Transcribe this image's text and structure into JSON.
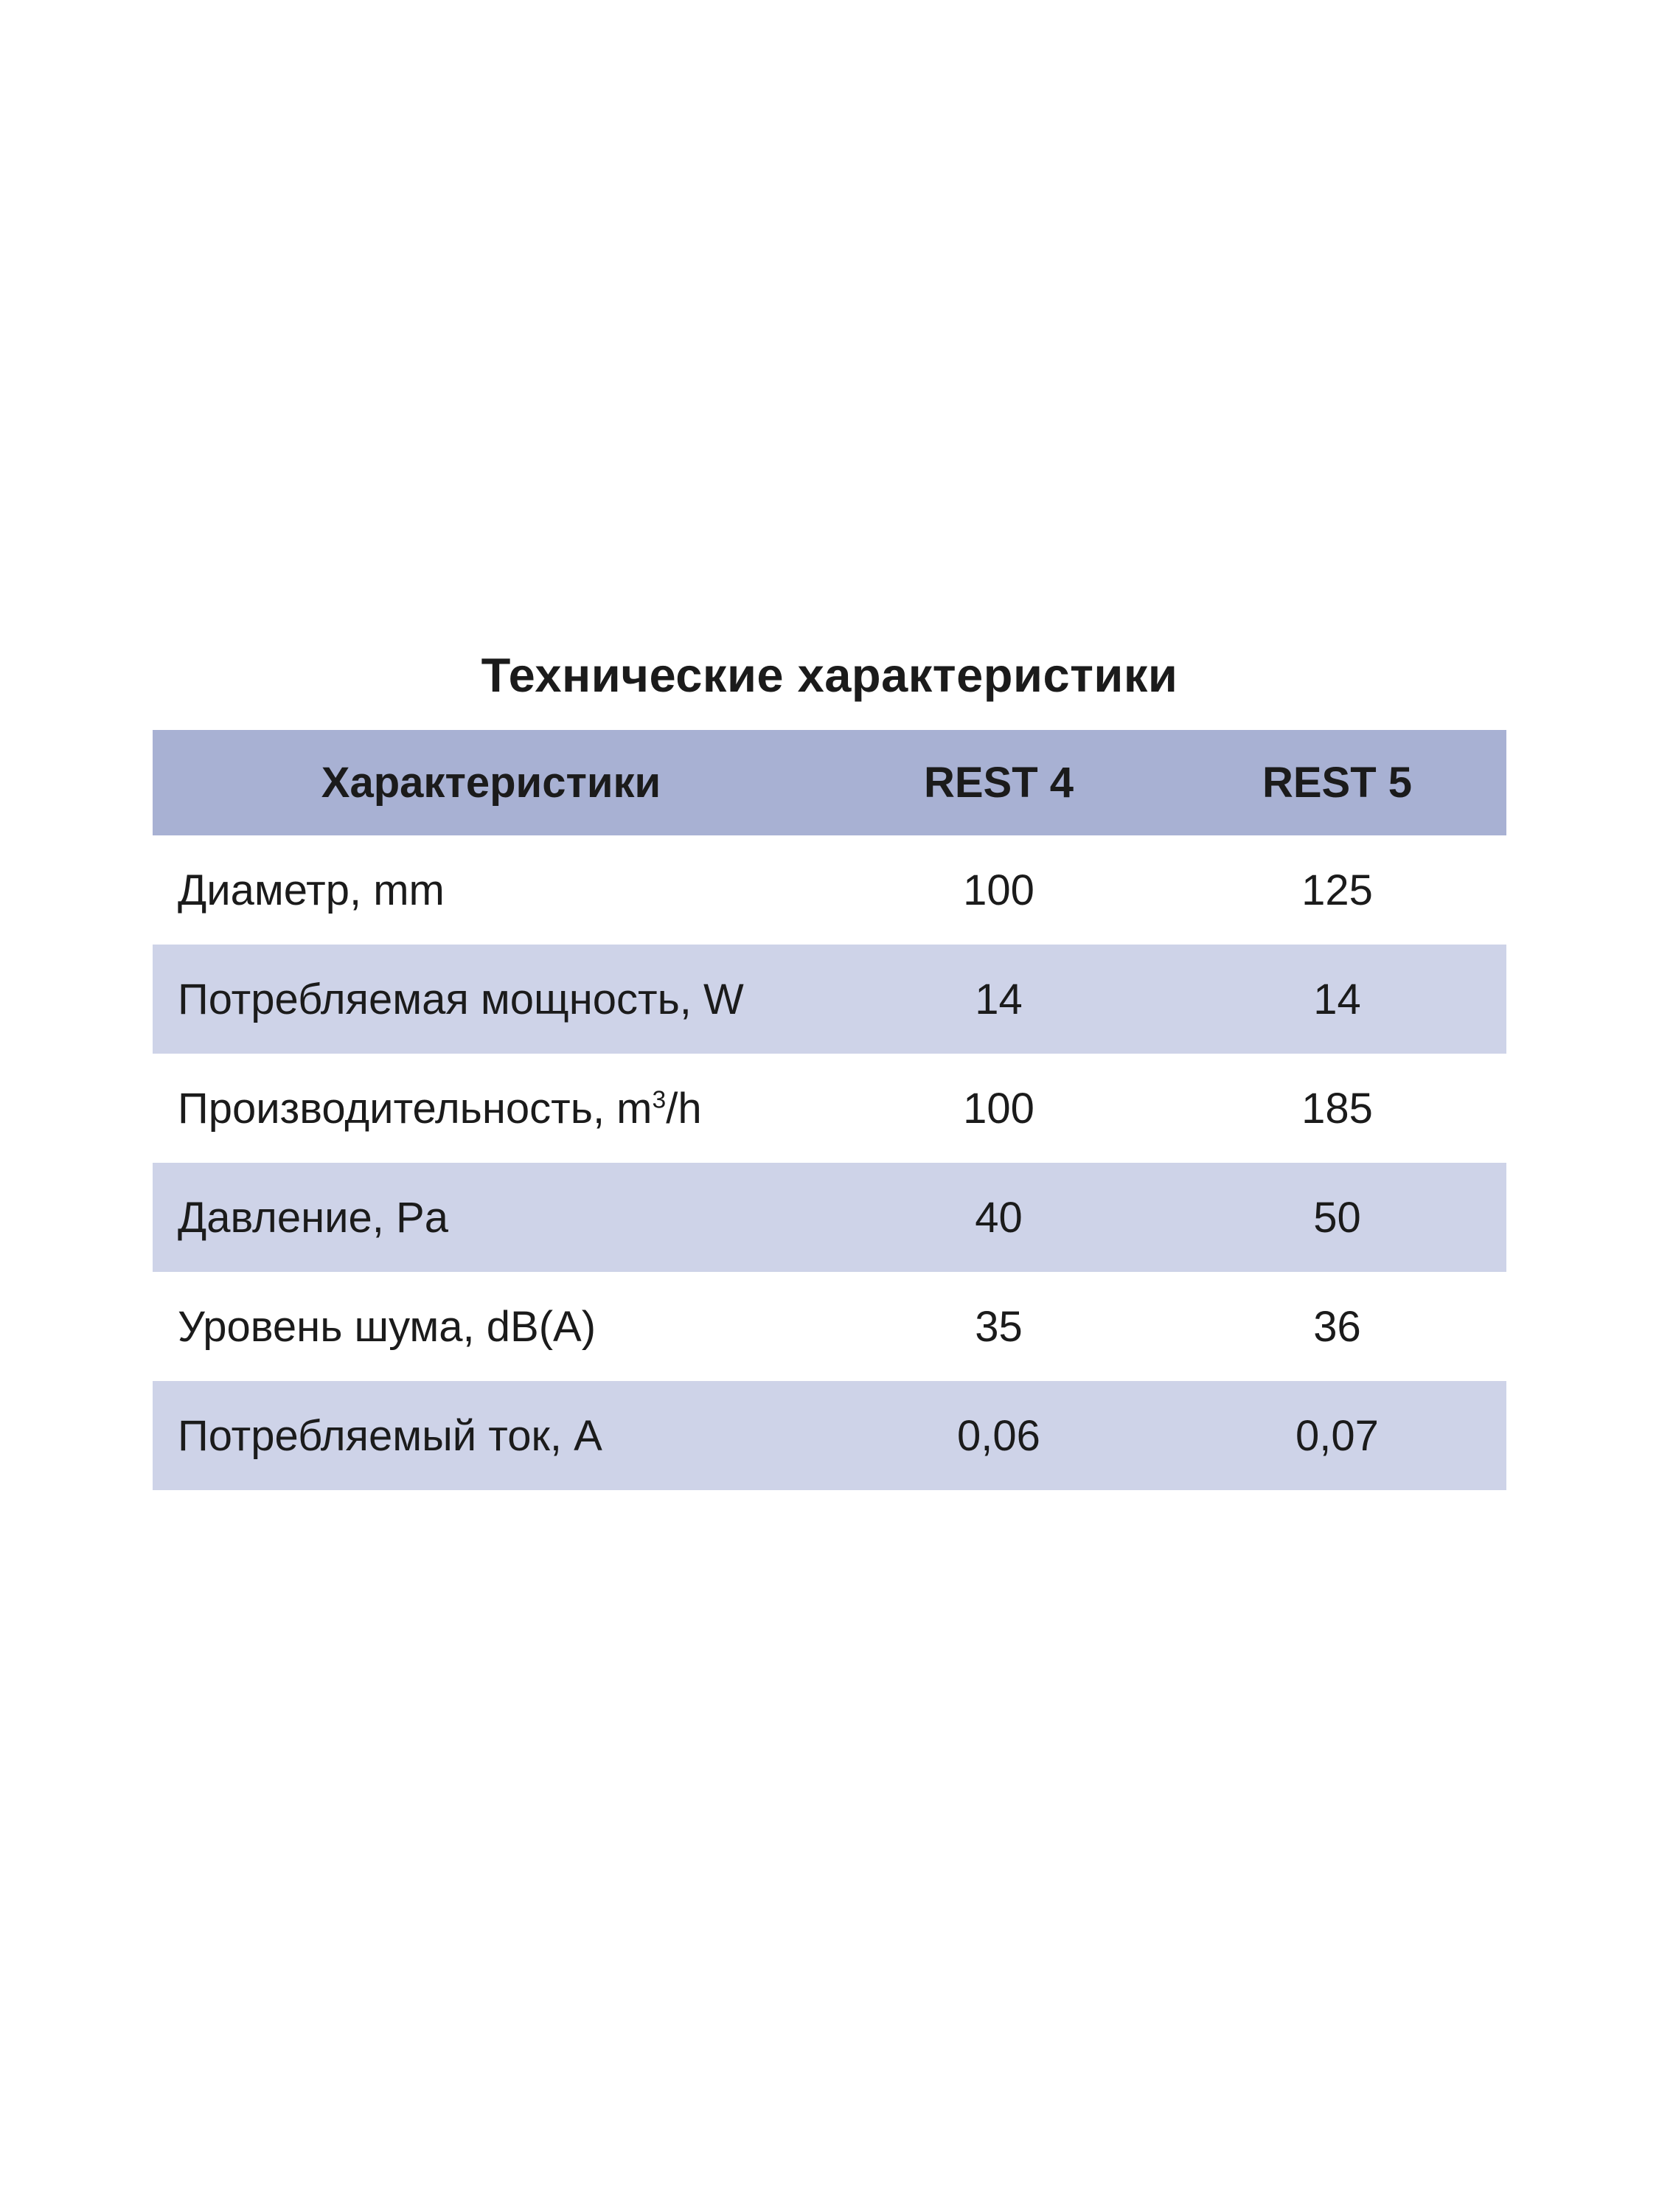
{
  "title": "Технические характеристики",
  "colors": {
    "header_bg": "#a8b1d3",
    "row_alt_bg": "#ced3e8",
    "text": "#1b1b1b",
    "page_bg": "#ffffff"
  },
  "table": {
    "header": {
      "label": "Характеристики",
      "col1": "REST 4",
      "col2": "REST 5"
    },
    "rows": [
      {
        "label": "Диаметр, mm",
        "col1": "100",
        "col2": "125"
      },
      {
        "label": "Потребляемая мощность, W",
        "col1": "14",
        "col2": "14"
      },
      {
        "label_parts": {
          "pre": "Производительность, m",
          "sup": "3",
          "post": "/h"
        },
        "col1": "100",
        "col2": "185"
      },
      {
        "label": "Давление, Pa",
        "col1": "40",
        "col2": "50"
      },
      {
        "label": "Уровень шума, dB(A)",
        "col1": "35",
        "col2": "36"
      },
      {
        "label": "Потребляемый ток, A",
        "col1": "0,06",
        "col2": "0,07"
      }
    ]
  }
}
